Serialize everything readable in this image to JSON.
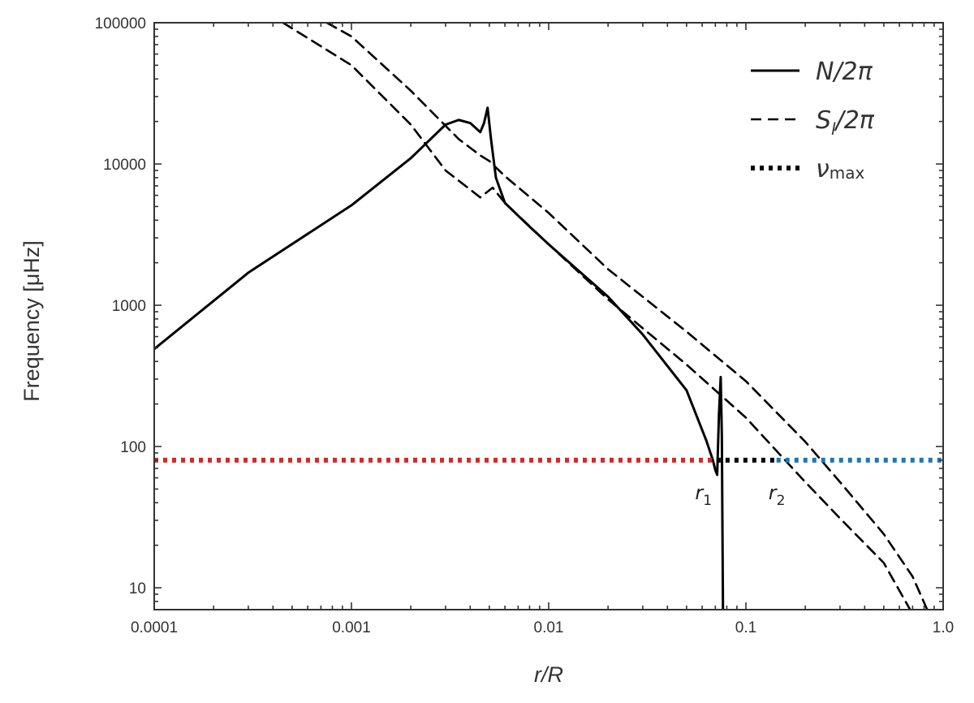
{
  "chart_data": {
    "type": "line",
    "title": "",
    "xlabel": "r/R",
    "ylabel": "Frequency [μHz]",
    "xscale": "log",
    "yscale": "log",
    "xlim": [
      0.0001,
      1.0
    ],
    "ylim": [
      7,
      100000
    ],
    "grid": false,
    "legend_position": "top-right",
    "x_ticks": [
      {
        "value": 0.0001,
        "label": "0.0001"
      },
      {
        "value": 0.001,
        "label": "0.001"
      },
      {
        "value": 0.01,
        "label": "0.01"
      },
      {
        "value": 0.1,
        "label": "0.1"
      },
      {
        "value": 1.0,
        "label": "1.0"
      }
    ],
    "y_ticks": [
      {
        "value": 10,
        "label": "10"
      },
      {
        "value": 100,
        "label": "100"
      },
      {
        "value": 1000,
        "label": "1000"
      },
      {
        "value": 10000,
        "label": "10000"
      },
      {
        "value": 100000,
        "label": "100000"
      }
    ],
    "legend": [
      {
        "series": "N",
        "style": "solid",
        "label_main": "N/2π",
        "label_sub": ""
      },
      {
        "series": "S",
        "style": "dashed",
        "label_main": "S",
        "label_sub": "l",
        "label_rest": "/2π"
      },
      {
        "series": "numax",
        "style": "dotted",
        "label_main": "ν",
        "label_sub": "max"
      }
    ],
    "series": [
      {
        "id": "N",
        "style": "solid",
        "color": "#000000",
        "points": [
          [
            0.0001,
            490
          ],
          [
            0.0003,
            1700
          ],
          [
            0.001,
            5100
          ],
          [
            0.002,
            11000
          ],
          [
            0.003,
            19000
          ],
          [
            0.0035,
            20500
          ],
          [
            0.004,
            19500
          ],
          [
            0.0045,
            16800
          ],
          [
            0.0047,
            19500
          ],
          [
            0.0049,
            25000
          ],
          [
            0.0051,
            15000
          ],
          [
            0.0054,
            8000
          ],
          [
            0.006,
            5300
          ],
          [
            0.008,
            3600
          ],
          [
            0.01,
            2700
          ],
          [
            0.02,
            1150
          ],
          [
            0.03,
            620
          ],
          [
            0.05,
            250
          ],
          [
            0.063,
            110
          ],
          [
            0.068,
            80
          ],
          [
            0.07,
            68
          ],
          [
            0.0715,
            63
          ],
          [
            0.073,
            170
          ],
          [
            0.0745,
            310
          ],
          [
            0.0755,
            120
          ],
          [
            0.0765,
            7
          ]
        ]
      },
      {
        "id": "S_upper",
        "style": "dashed",
        "color": "#000000",
        "points": [
          [
            0.00075,
            100000
          ],
          [
            0.001,
            80000
          ],
          [
            0.002,
            33000
          ],
          [
            0.0035,
            15000
          ],
          [
            0.0045,
            11500
          ],
          [
            0.005,
            10500
          ],
          [
            0.006,
            8200
          ],
          [
            0.01,
            4500
          ],
          [
            0.02,
            1800
          ],
          [
            0.05,
            650
          ],
          [
            0.1,
            290
          ],
          [
            0.2,
            108
          ],
          [
            0.3,
            56
          ],
          [
            0.5,
            24
          ],
          [
            0.7,
            12
          ],
          [
            0.83,
            7
          ]
        ]
      },
      {
        "id": "S_lower",
        "style": "dashed",
        "color": "#000000",
        "points": [
          [
            0.00045,
            100000
          ],
          [
            0.001,
            50000
          ],
          [
            0.002,
            19000
          ],
          [
            0.003,
            9000
          ],
          [
            0.0045,
            5800
          ],
          [
            0.0052,
            6800
          ],
          [
            0.006,
            5300
          ],
          [
            0.01,
            2700
          ],
          [
            0.02,
            1100
          ],
          [
            0.05,
            380
          ],
          [
            0.1,
            160
          ],
          [
            0.2,
            56
          ],
          [
            0.3,
            31
          ],
          [
            0.5,
            15
          ],
          [
            0.68,
            7
          ]
        ]
      },
      {
        "id": "numax_red",
        "style": "dotted",
        "color": "#d62728",
        "points": [
          [
            0.0001,
            80
          ],
          [
            0.071,
            80
          ]
        ]
      },
      {
        "id": "numax_black",
        "style": "dotted",
        "color": "#000000",
        "points": [
          [
            0.071,
            80
          ],
          [
            0.143,
            80
          ]
        ]
      },
      {
        "id": "numax_blue",
        "style": "dotted",
        "color": "#1f77b4",
        "points": [
          [
            0.143,
            80
          ],
          [
            1.0,
            80
          ]
        ]
      }
    ],
    "annotations": [
      {
        "id": "r1",
        "main": "r",
        "sub": "1",
        "x": 0.072,
        "y": 80
      },
      {
        "id": "r2",
        "main": "r",
        "sub": "2",
        "x": 0.143,
        "y": 80
      }
    ]
  }
}
